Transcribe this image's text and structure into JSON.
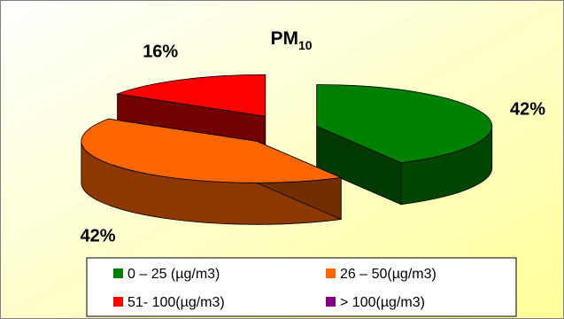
{
  "chart_data": {
    "type": "pie",
    "style": "3d-exploded",
    "title": {
      "main": "PM",
      "subscript": "10"
    },
    "slices": [
      {
        "label": "0 – 25 (µg/m3)",
        "value": 42,
        "display": "42%",
        "color": "#008000"
      },
      {
        "label": "26 – 50(µg/m3)",
        "value": 42,
        "display": "42%",
        "color": "#FF6600"
      },
      {
        "label": "51- 100(µg/m3)",
        "value": 16,
        "display": "16%",
        "color": "#FF0000"
      },
      {
        "label": "> 100(µg/m3)",
        "value": 0,
        "display": "",
        "color": "#800080"
      }
    ],
    "legend_position": "bottom",
    "background": {
      "top": "#FFFFFF",
      "bottom": "#FFFF99",
      "border": "#808080"
    }
  }
}
